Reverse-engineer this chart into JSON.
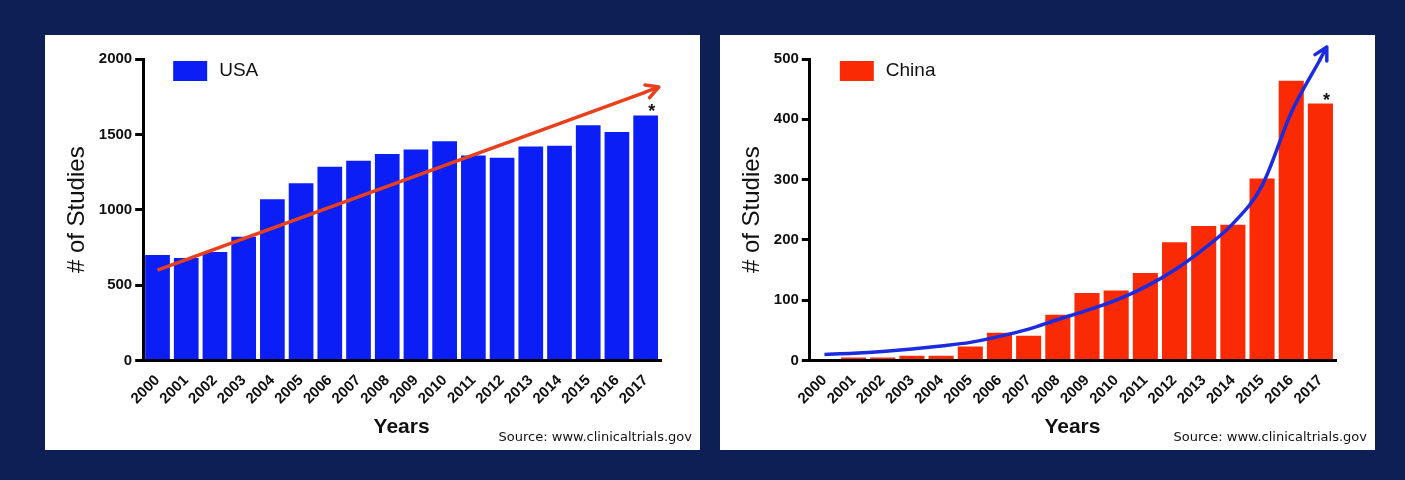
{
  "chart_data": [
    {
      "type": "bar",
      "xlabel": "Years",
      "ylabel": "# of Studies",
      "categories": [
        "2000",
        "2001",
        "2002",
        "2003",
        "2004",
        "2005",
        "2006",
        "2007",
        "2008",
        "2009",
        "2010",
        "2011",
        "2012",
        "2013",
        "2014",
        "2015",
        "2016",
        "2017"
      ],
      "series": [
        {
          "name": "USA",
          "color": "#0a1ef5",
          "values": [
            700,
            680,
            720,
            820,
            1070,
            1175,
            1285,
            1325,
            1370,
            1400,
            1455,
            1360,
            1345,
            1420,
            1425,
            1560,
            1515,
            1625
          ]
        },
        {
          "type": "line",
          "color": "#e8401c",
          "values": [
            600,
            null,
            null,
            null,
            null,
            null,
            null,
            null,
            null,
            null,
            null,
            null,
            null,
            null,
            null,
            null,
            null,
            1780
          ]
        }
      ],
      "ylim": [
        0,
        2000
      ],
      "yticks": [
        0,
        500,
        1000,
        1500,
        2000
      ],
      "grid": false,
      "legend": "top left",
      "marker": "none",
      "annotations": [
        {
          "text": "*",
          "x": "2017",
          "y": 1625
        },
        "Source: www.clinicaltrials.gov"
      ]
    },
    {
      "type": "bar",
      "xlabel": "Years",
      "ylabel": "# of Studies",
      "categories": [
        "2000",
        "2001",
        "2002",
        "2003",
        "2004",
        "2005",
        "2006",
        "2007",
        "2008",
        "2009",
        "2010",
        "2011",
        "2012",
        "2013",
        "2014",
        "2015",
        "2016",
        "2017"
      ],
      "series": [
        {
          "name": "China",
          "color": "#fa2a05",
          "values": [
            0,
            5,
            5,
            8,
            8,
            23,
            46,
            41,
            76,
            112,
            116,
            145,
            196,
            223,
            225,
            302,
            464,
            426
          ]
        },
        {
          "type": "line",
          "color": "#1a2be0",
          "values": [
            10,
            12,
            15,
            19,
            24,
            30,
            40,
            52,
            68,
            83,
            100,
            122,
            150,
            185,
            227,
            290,
            411,
            500
          ]
        }
      ],
      "ylim": [
        0,
        500
      ],
      "yticks": [
        0,
        100,
        200,
        300,
        400,
        500
      ],
      "grid": false,
      "legend": "top left",
      "marker": "none",
      "annotations": [
        {
          "text": "*",
          "x": "2017",
          "y": 426
        },
        "Source: www.clinicaltrials.gov"
      ]
    }
  ]
}
